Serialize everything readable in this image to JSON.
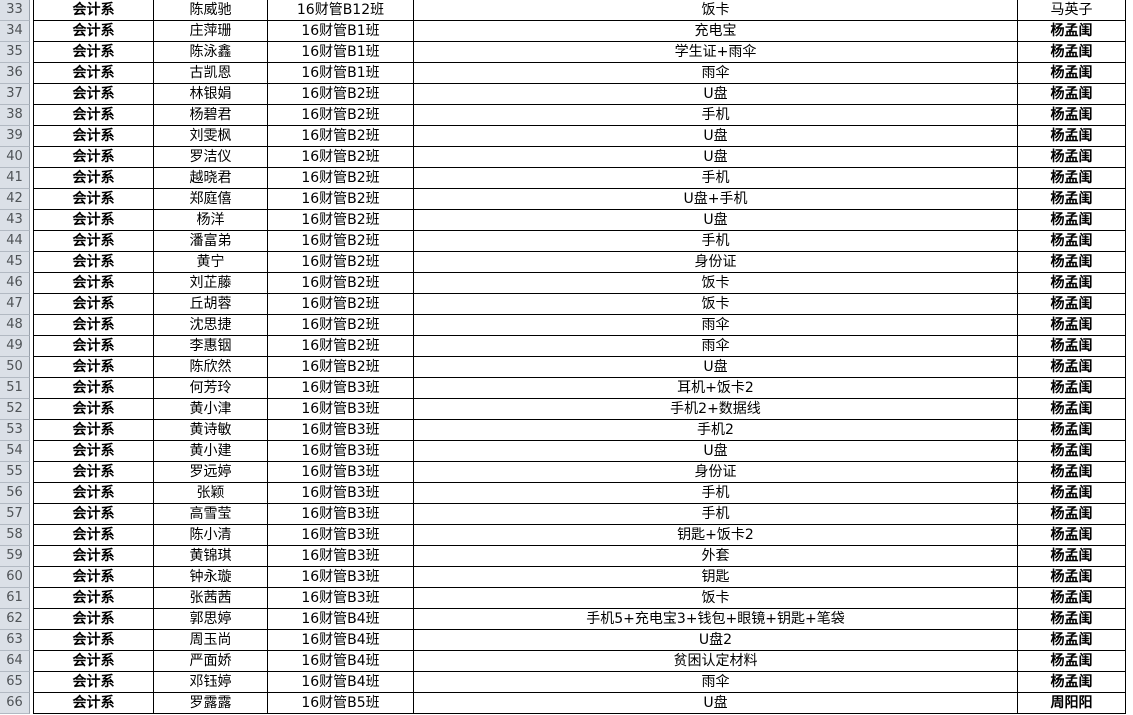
{
  "sheet": {
    "description": "spreadsheet-grid-rows-33-to-66",
    "colors": {
      "row_header_bg": "#dbe0e7",
      "row_header_text": "#4f5357",
      "row_header_border": "#99a1ab",
      "grid_border": "#000000",
      "cell_bg": "#ffffff"
    },
    "columns": [
      "row_number",
      "department",
      "student_name",
      "class_name",
      "items",
      "handler"
    ],
    "rows": [
      {
        "num": "33",
        "dept": "会计系",
        "name": "陈威驰",
        "cls": "16财管B12班",
        "item": "饭卡",
        "handler": "马英子",
        "handler_bold": false
      },
      {
        "num": "34",
        "dept": "会计系",
        "name": "庄萍珊",
        "cls": "16财管B1班",
        "item": "充电宝",
        "handler": "杨孟闺",
        "handler_bold": true
      },
      {
        "num": "35",
        "dept": "会计系",
        "name": "陈泳鑫",
        "cls": "16财管B1班",
        "item": "学生证+雨伞",
        "handler": "杨孟闺",
        "handler_bold": true
      },
      {
        "num": "36",
        "dept": "会计系",
        "name": "古凯恩",
        "cls": "16财管B1班",
        "item": "雨伞",
        "handler": "杨孟闺",
        "handler_bold": true
      },
      {
        "num": "37",
        "dept": "会计系",
        "name": "林银娟",
        "cls": "16财管B2班",
        "item": "U盘",
        "handler": "杨孟闺",
        "handler_bold": true
      },
      {
        "num": "38",
        "dept": "会计系",
        "name": "杨碧君",
        "cls": "16财管B2班",
        "item": "手机",
        "handler": "杨孟闺",
        "handler_bold": true
      },
      {
        "num": "39",
        "dept": "会计系",
        "name": "刘雯枫",
        "cls": "16财管B2班",
        "item": "U盘",
        "handler": "杨孟闺",
        "handler_bold": true
      },
      {
        "num": "40",
        "dept": "会计系",
        "name": "罗洁仪",
        "cls": "16财管B2班",
        "item": "U盘",
        "handler": "杨孟闺",
        "handler_bold": true
      },
      {
        "num": "41",
        "dept": "会计系",
        "name": "越晓君",
        "cls": "16财管B2班",
        "item": "手机",
        "handler": "杨孟闺",
        "handler_bold": true
      },
      {
        "num": "42",
        "dept": "会计系",
        "name": "郑庭僖",
        "cls": "16财管B2班",
        "item": "U盘+手机",
        "handler": "杨孟闺",
        "handler_bold": true
      },
      {
        "num": "43",
        "dept": "会计系",
        "name": "杨洋",
        "cls": "16财管B2班",
        "item": "U盘",
        "handler": "杨孟闺",
        "handler_bold": true
      },
      {
        "num": "44",
        "dept": "会计系",
        "name": "潘富弟",
        "cls": "16财管B2班",
        "item": "手机",
        "handler": "杨孟闺",
        "handler_bold": true
      },
      {
        "num": "45",
        "dept": "会计系",
        "name": "黄宁",
        "cls": "16财管B2班",
        "item": "身份证",
        "handler": "杨孟闺",
        "handler_bold": true
      },
      {
        "num": "46",
        "dept": "会计系",
        "name": "刘芷藤",
        "cls": "16财管B2班",
        "item": "饭卡",
        "handler": "杨孟闺",
        "handler_bold": true
      },
      {
        "num": "47",
        "dept": "会计系",
        "name": "丘胡蓉",
        "cls": "16财管B2班",
        "item": "饭卡",
        "handler": "杨孟闺",
        "handler_bold": true
      },
      {
        "num": "48",
        "dept": "会计系",
        "name": "沈思捷",
        "cls": "16财管B2班",
        "item": "雨伞",
        "handler": "杨孟闺",
        "handler_bold": true
      },
      {
        "num": "49",
        "dept": "会计系",
        "name": "李惠铟",
        "cls": "16财管B2班",
        "item": "雨伞",
        "handler": "杨孟闺",
        "handler_bold": true
      },
      {
        "num": "50",
        "dept": "会计系",
        "name": "陈欣然",
        "cls": "16财管B2班",
        "item": "U盘",
        "handler": "杨孟闺",
        "handler_bold": true
      },
      {
        "num": "51",
        "dept": "会计系",
        "name": "何芳玲",
        "cls": "16财管B3班",
        "item": "耳机+饭卡2",
        "handler": "杨孟闺",
        "handler_bold": true
      },
      {
        "num": "52",
        "dept": "会计系",
        "name": "黄小津",
        "cls": "16财管B3班",
        "item": "手机2+数据线",
        "handler": "杨孟闺",
        "handler_bold": true
      },
      {
        "num": "53",
        "dept": "会计系",
        "name": "黄诗敏",
        "cls": "16财管B3班",
        "item": "手机2",
        "handler": "杨孟闺",
        "handler_bold": true
      },
      {
        "num": "54",
        "dept": "会计系",
        "name": "黄小建",
        "cls": "16财管B3班",
        "item": "U盘",
        "handler": "杨孟闺",
        "handler_bold": true
      },
      {
        "num": "55",
        "dept": "会计系",
        "name": "罗远婷",
        "cls": "16财管B3班",
        "item": "身份证",
        "handler": "杨孟闺",
        "handler_bold": true
      },
      {
        "num": "56",
        "dept": "会计系",
        "name": "张颖",
        "cls": "16财管B3班",
        "item": "手机",
        "handler": "杨孟闺",
        "handler_bold": true
      },
      {
        "num": "57",
        "dept": "会计系",
        "name": "高雪莹",
        "cls": "16财管B3班",
        "item": "手机",
        "handler": "杨孟闺",
        "handler_bold": true
      },
      {
        "num": "58",
        "dept": "会计系",
        "name": "陈小清",
        "cls": "16财管B3班",
        "item": "钥匙+饭卡2",
        "handler": "杨孟闺",
        "handler_bold": true
      },
      {
        "num": "59",
        "dept": "会计系",
        "name": "黄锦琪",
        "cls": "16财管B3班",
        "item": "外套",
        "handler": "杨孟闺",
        "handler_bold": true
      },
      {
        "num": "60",
        "dept": "会计系",
        "name": "钟永璇",
        "cls": "16财管B3班",
        "item": "钥匙",
        "handler": "杨孟闺",
        "handler_bold": true
      },
      {
        "num": "61",
        "dept": "会计系",
        "name": "张茜茜",
        "cls": "16财管B3班",
        "item": "饭卡",
        "handler": "杨孟闺",
        "handler_bold": true
      },
      {
        "num": "62",
        "dept": "会计系",
        "name": "郭思婷",
        "cls": "16财管B4班",
        "item": "手机5+充电宝3+钱包+眼镜+钥匙+笔袋",
        "handler": "杨孟闺",
        "handler_bold": true
      },
      {
        "num": "63",
        "dept": "会计系",
        "name": "周玉尚",
        "cls": "16财管B4班",
        "item": "U盘2",
        "handler": "杨孟闺",
        "handler_bold": true
      },
      {
        "num": "64",
        "dept": "会计系",
        "name": "严面娇",
        "cls": "16财管B4班",
        "item": "贫困认定材料",
        "handler": "杨孟闺",
        "handler_bold": true
      },
      {
        "num": "65",
        "dept": "会计系",
        "name": "邓钰婷",
        "cls": "16财管B4班",
        "item": "雨伞",
        "handler": "杨孟闺",
        "handler_bold": true
      },
      {
        "num": "66",
        "dept": "会计系",
        "name": "罗露露",
        "cls": "16财管B5班",
        "item": "U盘",
        "handler": "周阳阳",
        "handler_bold": true
      }
    ]
  }
}
